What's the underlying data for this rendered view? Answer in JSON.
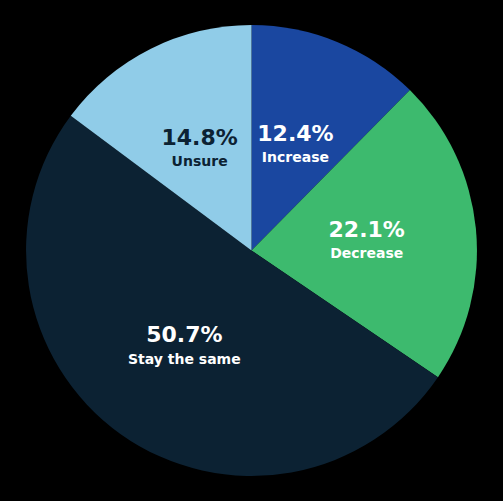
{
  "chart_data": {
    "type": "pie",
    "categories": [
      "Increase",
      "Decrease",
      "Stay the same",
      "Unsure"
    ],
    "values": [
      12.4,
      22.1,
      50.7,
      14.8
    ],
    "value_labels": [
      "12.4%",
      "22.1%",
      "50.7%",
      "14.8%"
    ],
    "colors": [
      "#1a47a0",
      "#3dba6e",
      "#0c2233",
      "#90cce8"
    ],
    "data_labels": true
  }
}
